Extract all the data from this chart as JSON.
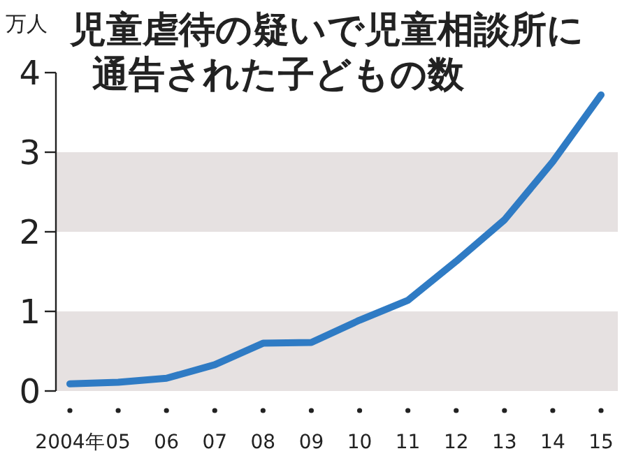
{
  "chart_data": {
    "type": "line",
    "title": "児童虐待の疑いで児童相談所に通告された子どもの数",
    "ylabel": "万人",
    "categories": [
      "2004年",
      "05",
      "06",
      "07",
      "08",
      "09",
      "10",
      "11",
      "12",
      "13",
      "14",
      "15"
    ],
    "series": [
      {
        "color": "#2f7bc4",
        "values": [
          0.09,
          0.11,
          0.16,
          0.33,
          0.6,
          0.61,
          0.89,
          1.14,
          1.63,
          2.15,
          2.88,
          3.72
        ]
      }
    ],
    "ylim": [
      0,
      4
    ],
    "yticks": [
      0,
      1,
      2,
      3,
      4
    ],
    "grid": false,
    "line_style": "solid",
    "bands": [
      {
        "axis": "y",
        "from": 0,
        "to": 1,
        "color": "#e6e1e1"
      },
      {
        "axis": "y",
        "from": 2,
        "to": 3,
        "color": "#e6e1e1"
      }
    ]
  }
}
